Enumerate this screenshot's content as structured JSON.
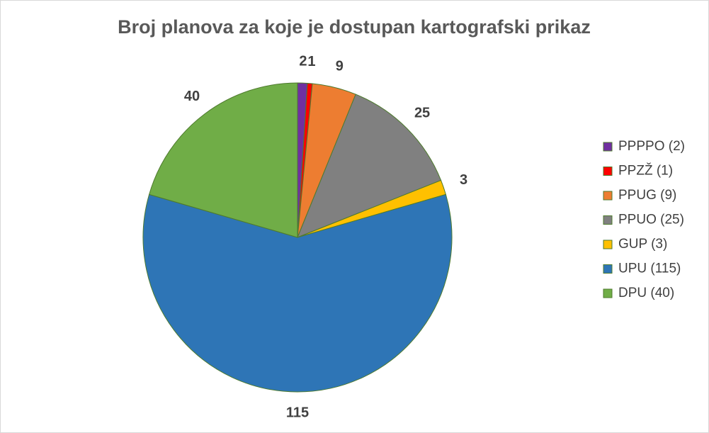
{
  "chart_data": {
    "type": "pie",
    "title": "Broj planova za koje je dostupan kartografski prikaz",
    "categories": [
      "PPPPO (2)",
      "PPZŽ (1)",
      "PPUG (9)",
      "PPUO (25)",
      "GUP (3)",
      "UPU (115)",
      "DPU (40)"
    ],
    "values": [
      2,
      1,
      9,
      25,
      3,
      115,
      40
    ],
    "colors": [
      "#7030a0",
      "#ff0000",
      "#ed7d31",
      "#808080",
      "#ffc000",
      "#2e75b6",
      "#70ad47"
    ],
    "legend": "right"
  }
}
